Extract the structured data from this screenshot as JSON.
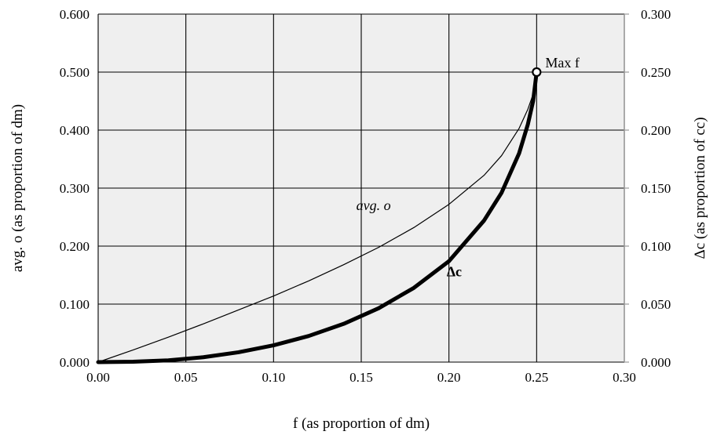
{
  "chart_data": {
    "type": "line",
    "x": [
      0.0,
      0.02,
      0.04,
      0.06,
      0.08,
      0.1,
      0.12,
      0.14,
      0.16,
      0.18,
      0.2,
      0.22,
      0.23,
      0.24,
      0.245,
      0.248,
      0.25
    ],
    "series": [
      {
        "name": "avg. o",
        "y": [
          0.0,
          0.021,
          0.043,
          0.066,
          0.09,
          0.114,
          0.14,
          0.168,
          0.198,
          0.232,
          0.272,
          0.322,
          0.356,
          0.403,
          0.436,
          0.462,
          0.5
        ],
        "axis": "left",
        "color": "#000000",
        "width": 1.2
      },
      {
        "name": "Δc",
        "y": [
          0.0,
          0.0003,
          0.0015,
          0.0042,
          0.0085,
          0.0145,
          0.0225,
          0.033,
          0.0465,
          0.064,
          0.087,
          0.122,
          0.146,
          0.18,
          0.205,
          0.225,
          0.25
        ],
        "axis": "right",
        "color": "#000000",
        "width": 5
      }
    ],
    "max_point": {
      "x": 0.25,
      "y": 0.5,
      "label": "Max f"
    },
    "xlim": [
      0.0,
      0.3
    ],
    "ylim_left": [
      0.0,
      0.6
    ],
    "ylim_right": [
      0.0,
      0.3
    ],
    "x_ticks": [
      "0.00",
      "0.05",
      "0.10",
      "0.15",
      "0.20",
      "0.25",
      "0.30"
    ],
    "y_left_ticks": [
      "0.000",
      "0.100",
      "0.200",
      "0.300",
      "0.400",
      "0.500",
      "0.600"
    ],
    "y_right_ticks": [
      "0.000",
      "0.050",
      "0.100",
      "0.150",
      "0.200",
      "0.250",
      "0.300"
    ],
    "xlabel": "f (as proportion of dm)",
    "ylabel_left": "avg. o (as proportion of dm)",
    "ylabel_right": "Δc (as proportion of cc)",
    "grid": true,
    "plot_background": "#efefef",
    "annotations": [
      {
        "text": "avg. o",
        "x": 0.157,
        "y": 0.262
      },
      {
        "text": "Δc",
        "x": 0.203,
        "y": 0.148
      }
    ]
  }
}
